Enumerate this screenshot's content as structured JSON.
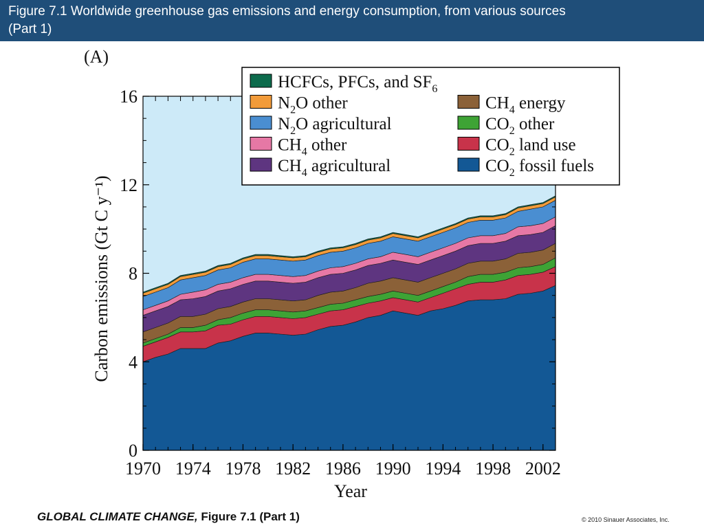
{
  "header": {
    "title_line1": "Figure 7.1  Worldwide greenhouse gas emissions and energy consumption, from various sources",
    "title_line2": "(Part 1)"
  },
  "panel_label": "(A)",
  "footer": {
    "book": "GLOBAL CLIMATE CHANGE,",
    "figure": " Figure 7.1 (Part 1)",
    "copyright": "© 2010 Sinauer Associates, Inc."
  },
  "colors": {
    "background": "#cdeaf8",
    "header": "#1f4e79"
  },
  "chart_data": {
    "type": "area",
    "stacked": true,
    "xlabel": "Year",
    "ylabel": "Carbon emissions (Gt C y⁻¹)",
    "xlim": [
      1970,
      2003
    ],
    "ylim": [
      0,
      16
    ],
    "xticks": [
      1970,
      1974,
      1978,
      1982,
      1986,
      1990,
      1994,
      1998,
      2002
    ],
    "yticks": [
      0,
      4,
      8,
      12,
      16
    ],
    "legend_position": "top-right",
    "x": [
      1970,
      1971,
      1972,
      1973,
      1974,
      1975,
      1976,
      1977,
      1978,
      1979,
      1980,
      1981,
      1982,
      1983,
      1984,
      1985,
      1986,
      1987,
      1988,
      1989,
      1990,
      1991,
      1992,
      1993,
      1994,
      1995,
      1996,
      1997,
      1998,
      1999,
      2000,
      2001,
      2002,
      2003
    ],
    "series": [
      {
        "name": "CO2 fossil fuels",
        "label_main": "CO",
        "label_sub": "2",
        "label_rest": " fossil fuels",
        "color": "#135895",
        "values": [
          4.0,
          4.2,
          4.35,
          4.6,
          4.6,
          4.6,
          4.85,
          4.95,
          5.15,
          5.3,
          5.3,
          5.25,
          5.2,
          5.25,
          5.45,
          5.6,
          5.65,
          5.8,
          6.0,
          6.1,
          6.3,
          6.2,
          6.1,
          6.3,
          6.4,
          6.55,
          6.75,
          6.8,
          6.8,
          6.85,
          7.05,
          7.1,
          7.2,
          7.45
        ]
      },
      {
        "name": "CO2 land use",
        "label_main": "CO",
        "label_sub": "2",
        "label_rest": " land use",
        "color": "#c8334a",
        "values": [
          0.7,
          0.7,
          0.75,
          0.75,
          0.75,
          0.8,
          0.8,
          0.75,
          0.75,
          0.75,
          0.75,
          0.75,
          0.75,
          0.75,
          0.7,
          0.7,
          0.7,
          0.7,
          0.65,
          0.65,
          0.6,
          0.6,
          0.6,
          0.6,
          0.7,
          0.75,
          0.75,
          0.8,
          0.8,
          0.85,
          0.85,
          0.85,
          0.85,
          0.85
        ]
      },
      {
        "name": "CO2 other",
        "label_main": "CO",
        "label_sub": "2",
        "label_rest": " other",
        "color": "#3ea335",
        "values": [
          0.15,
          0.15,
          0.15,
          0.2,
          0.2,
          0.25,
          0.25,
          0.3,
          0.3,
          0.3,
          0.3,
          0.3,
          0.3,
          0.3,
          0.3,
          0.3,
          0.3,
          0.3,
          0.3,
          0.3,
          0.3,
          0.3,
          0.3,
          0.3,
          0.3,
          0.3,
          0.35,
          0.35,
          0.35,
          0.35,
          0.35,
          0.35,
          0.35,
          0.4
        ]
      },
      {
        "name": "CH4 energy",
        "label_main": "CH",
        "label_sub": "4",
        "label_rest": " energy",
        "color": "#8b6138",
        "values": [
          0.5,
          0.5,
          0.5,
          0.5,
          0.5,
          0.5,
          0.5,
          0.5,
          0.5,
          0.5,
          0.5,
          0.5,
          0.5,
          0.5,
          0.55,
          0.55,
          0.55,
          0.55,
          0.6,
          0.6,
          0.6,
          0.6,
          0.6,
          0.6,
          0.6,
          0.6,
          0.6,
          0.6,
          0.6,
          0.6,
          0.65,
          0.65,
          0.65,
          0.65
        ]
      },
      {
        "name": "CH4 agricultural",
        "label_main": "CH",
        "label_sub": "4",
        "label_rest": " agricultural",
        "color": "#5e3580",
        "values": [
          0.75,
          0.75,
          0.75,
          0.75,
          0.8,
          0.8,
          0.8,
          0.8,
          0.8,
          0.8,
          0.8,
          0.8,
          0.8,
          0.8,
          0.8,
          0.8,
          0.8,
          0.8,
          0.8,
          0.8,
          0.8,
          0.8,
          0.8,
          0.8,
          0.8,
          0.8,
          0.8,
          0.8,
          0.8,
          0.8,
          0.8,
          0.8,
          0.8,
          0.8
        ]
      },
      {
        "name": "CH4 other",
        "label_main": "CH",
        "label_sub": "4",
        "label_rest": " other",
        "color": "#e678a5",
        "values": [
          0.25,
          0.25,
          0.25,
          0.25,
          0.3,
          0.3,
          0.3,
          0.3,
          0.3,
          0.3,
          0.3,
          0.3,
          0.3,
          0.3,
          0.3,
          0.3,
          0.3,
          0.3,
          0.3,
          0.3,
          0.35,
          0.35,
          0.35,
          0.35,
          0.35,
          0.35,
          0.35,
          0.35,
          0.35,
          0.35,
          0.4,
          0.4,
          0.4,
          0.4
        ]
      },
      {
        "name": "N2O agricultural",
        "label_main": "N",
        "label_sub": "2",
        "label_rest": "O agricultural",
        "color": "#4a8ed1",
        "values": [
          0.6,
          0.6,
          0.6,
          0.65,
          0.65,
          0.65,
          0.65,
          0.65,
          0.7,
          0.7,
          0.7,
          0.7,
          0.7,
          0.7,
          0.7,
          0.7,
          0.7,
          0.7,
          0.7,
          0.7,
          0.7,
          0.7,
          0.7,
          0.7,
          0.7,
          0.7,
          0.7,
          0.7,
          0.7,
          0.7,
          0.7,
          0.75,
          0.75,
          0.75
        ]
      },
      {
        "name": "N2O other",
        "label_main": "N",
        "label_sub": "2",
        "label_rest": "O other",
        "color": "#f29b3a",
        "values": [
          0.15,
          0.15,
          0.15,
          0.15,
          0.15,
          0.15,
          0.15,
          0.15,
          0.15,
          0.15,
          0.15,
          0.15,
          0.15,
          0.15,
          0.15,
          0.15,
          0.15,
          0.15,
          0.15,
          0.15,
          0.15,
          0.15,
          0.15,
          0.15,
          0.15,
          0.15,
          0.15,
          0.15,
          0.15,
          0.15,
          0.15,
          0.15,
          0.15,
          0.15
        ]
      },
      {
        "name": "HCFCs, PFCs, and SF6",
        "label_main": "HCFCs, PFCs, and SF",
        "label_sub": "6",
        "label_rest": "",
        "color": "#0d6b4c",
        "values": [
          0.05,
          0.05,
          0.05,
          0.05,
          0.05,
          0.05,
          0.05,
          0.05,
          0.05,
          0.05,
          0.05,
          0.05,
          0.05,
          0.05,
          0.05,
          0.05,
          0.05,
          0.05,
          0.05,
          0.05,
          0.05,
          0.05,
          0.05,
          0.05,
          0.05,
          0.05,
          0.05,
          0.05,
          0.05,
          0.05,
          0.05,
          0.05,
          0.05,
          0.05
        ]
      }
    ],
    "legend_order": [
      "HCFCs, PFCs, and SF6",
      "N2O other",
      "CH4 energy",
      "N2O agricultural",
      "CO2 other",
      "CH4 other",
      "CO2 land use",
      "CH4 agricultural",
      "CO2 fossil fuels"
    ]
  }
}
